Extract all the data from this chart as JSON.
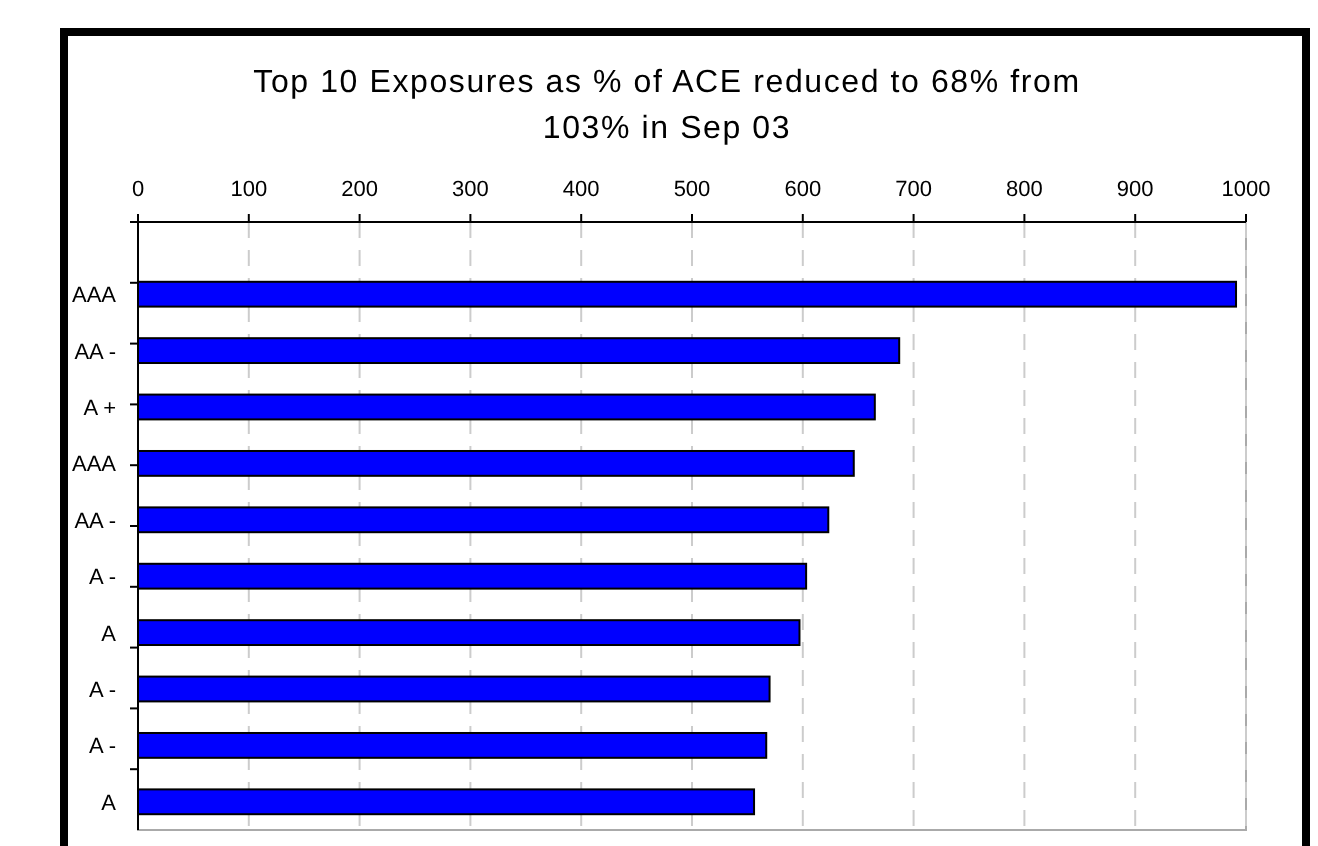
{
  "chart_data": {
    "type": "bar",
    "orientation": "horizontal",
    "title": "Top 10 Exposures as % of ACE reduced to 68% from 103% in Sep 03",
    "categories": [
      "AAA",
      "AA -",
      "A +",
      "AAA",
      "AA -",
      "A -",
      "A",
      "A -",
      "A -",
      "A"
    ],
    "values": [
      991,
      687,
      665,
      646,
      623,
      603,
      597,
      570,
      567,
      556
    ],
    "color": "#0000ff",
    "xlim": [
      0,
      1000
    ],
    "xticks": [
      0,
      100,
      200,
      300,
      400,
      500,
      600,
      700,
      800,
      900,
      1000
    ],
    "grid": "x"
  }
}
